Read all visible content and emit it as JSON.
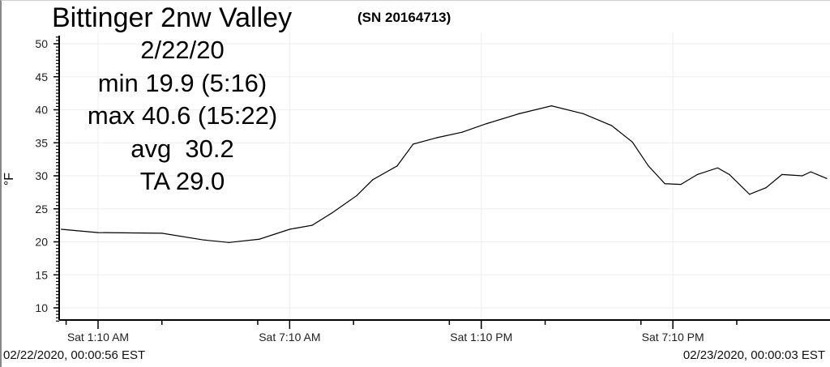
{
  "header": {
    "station": "Bittinger 2nw Valley",
    "serial": "(SN 20164713)"
  },
  "stats": {
    "date": "2/22/20",
    "min": "min 19.9 (5:16)",
    "max": "max 40.6 (15:22)",
    "avg": "avg  30.2",
    "ta": "TA 29.0"
  },
  "footer": {
    "start": "02/22/2020, 00:00:56 EST",
    "end": "02/23/2020, 00:00:03 EST"
  },
  "chart_data": {
    "type": "line",
    "title": "Bittinger 2nw Valley",
    "xlabel": "",
    "ylabel": "°F",
    "ylim": [
      8,
      51
    ],
    "xlim": [
      "00:00",
      "24:00"
    ],
    "yticks": [
      10,
      15,
      20,
      25,
      30,
      35,
      40,
      45,
      50
    ],
    "xticks": [
      {
        "time": "01:10",
        "label": "Sat 1:10 AM"
      },
      {
        "time": "07:10",
        "label": "Sat 7:10 AM"
      },
      {
        "time": "13:10",
        "label": "Sat 1:10 PM"
      },
      {
        "time": "19:10",
        "label": "Sat 7:10 PM"
      }
    ],
    "grid": true,
    "line_color": "#000000",
    "points": [
      [
        "00:01",
        21.9
      ],
      [
        "01:10",
        21.4
      ],
      [
        "03:10",
        21.3
      ],
      [
        "04:27",
        20.3
      ],
      [
        "05:16",
        19.9
      ],
      [
        "06:13",
        20.4
      ],
      [
        "07:10",
        21.9
      ],
      [
        "07:52",
        22.5
      ],
      [
        "08:30",
        24.4
      ],
      [
        "09:16",
        27.0
      ],
      [
        "09:46",
        29.4
      ],
      [
        "10:32",
        31.5
      ],
      [
        "11:02",
        34.8
      ],
      [
        "11:48",
        35.8
      ],
      [
        "12:34",
        36.6
      ],
      [
        "13:20",
        37.9
      ],
      [
        "14:21",
        39.4
      ],
      [
        "15:22",
        40.6
      ],
      [
        "16:22",
        39.4
      ],
      [
        "17:15",
        37.6
      ],
      [
        "17:54",
        35.1
      ],
      [
        "18:24",
        31.5
      ],
      [
        "18:55",
        28.8
      ],
      [
        "19:25",
        28.7
      ],
      [
        "19:56",
        30.2
      ],
      [
        "20:34",
        31.2
      ],
      [
        "20:56",
        30.2
      ],
      [
        "21:34",
        27.2
      ],
      [
        "22:05",
        28.2
      ],
      [
        "22:35",
        30.2
      ],
      [
        "23:13",
        30.0
      ],
      [
        "23:29",
        30.6
      ],
      [
        "23:59",
        29.6
      ]
    ]
  }
}
